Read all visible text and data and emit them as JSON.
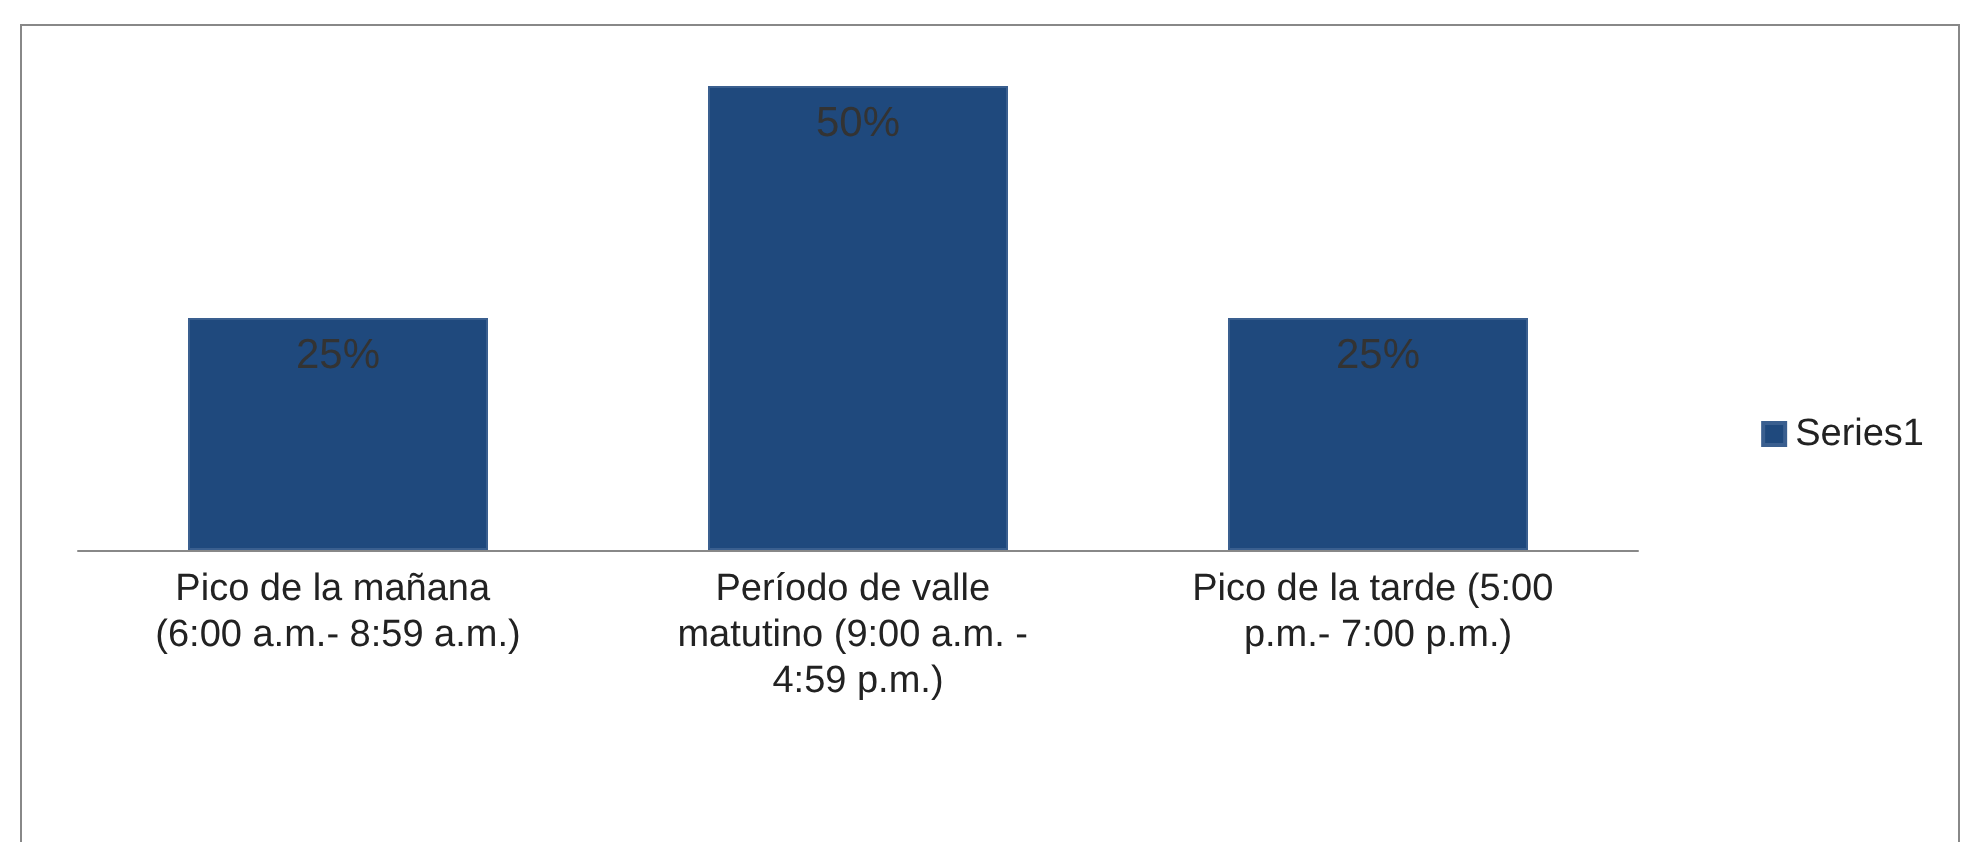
{
  "chart_data": {
    "type": "bar",
    "categories": [
      "Pico de la mañana (6:00 a.m.- 8:59 a.m.)",
      "Período de valle matutino (9:00 a.m. - 4:59 p.m.)",
      "Pico de la tarde (5:00 p.m.- 7:00 p.m.)"
    ],
    "series": [
      {
        "name": "Series1",
        "color": "#1f497d",
        "values": [
          25,
          50,
          25
        ],
        "value_labels": [
          "25%",
          "50%",
          "25%"
        ]
      }
    ],
    "legend": "right",
    "grid": false
  }
}
